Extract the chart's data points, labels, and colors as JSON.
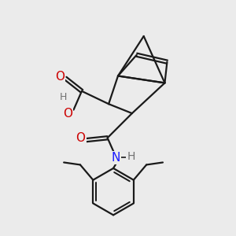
{
  "background_color": "#ebebeb",
  "atom_colors": {
    "C": "#000000",
    "O": "#cc0000",
    "N": "#1a1aff",
    "H": "#707070"
  },
  "bond_color": "#1a1a1a",
  "bond_width": 1.6,
  "fig_size": [
    3.0,
    3.0
  ],
  "dpi": 100,
  "xlim": [
    0,
    10
  ],
  "ylim": [
    0,
    10
  ]
}
